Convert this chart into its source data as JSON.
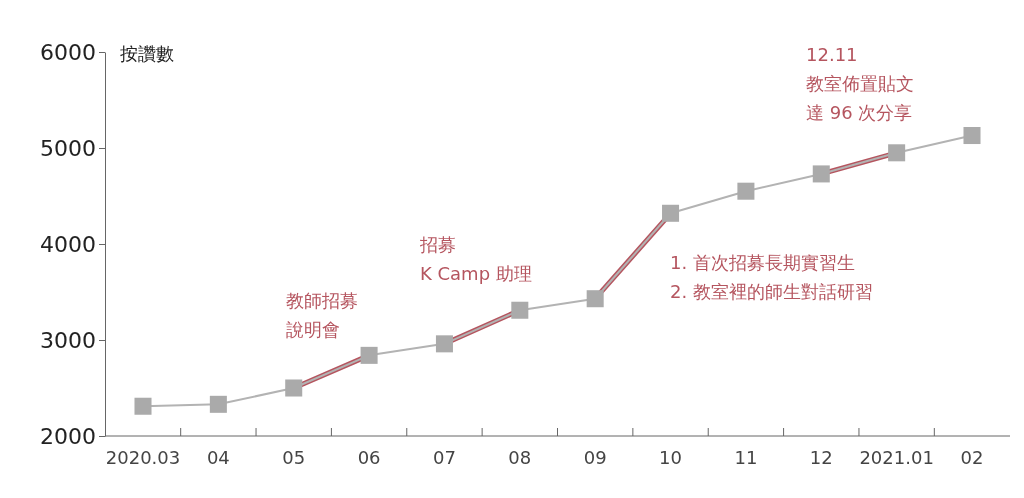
{
  "chart_data": {
    "type": "line",
    "ylabel": "按讚數",
    "categories": [
      "2020.03",
      "04",
      "05",
      "06",
      "07",
      "08",
      "09",
      "10",
      "11",
      "12",
      "2021.01",
      "02"
    ],
    "series": [
      {
        "color": "#b3b3b3",
        "values": [
          2310,
          2330,
          2500,
          2840,
          2960,
          3310,
          3430,
          4320,
          4550,
          4730,
          4950,
          5130
        ],
        "marker": "square"
      },
      {
        "color": "#b5555f",
        "values": [
          null,
          null,
          2500,
          2840,
          null,
          null,
          null,
          null,
          null,
          null,
          null,
          null
        ],
        "marker": "none"
      },
      {
        "color": "#b5555f",
        "values": [
          null,
          null,
          null,
          null,
          2960,
          3310,
          null,
          null,
          null,
          null,
          null,
          null
        ],
        "marker": "none"
      },
      {
        "color": "#b5555f",
        "values": [
          null,
          null,
          null,
          null,
          null,
          null,
          3430,
          4320,
          null,
          null,
          null,
          null
        ],
        "marker": "none"
      },
      {
        "color": "#b5555f",
        "values": [
          null,
          null,
          null,
          null,
          null,
          null,
          null,
          null,
          null,
          4730,
          4950,
          null
        ],
        "marker": "none"
      }
    ],
    "ylim": [
      2000,
      6000
    ],
    "yticks": [
      2000,
      3000,
      4000,
      5000,
      6000
    ],
    "grid": false,
    "annotations": [
      "教師招募說明會",
      "招募K Camp 助理",
      "1. 首次招募長期實習生",
      "2. 教室裡的師生對話研習",
      "12.11",
      "教室佈置貼文達 96 次分享"
    ]
  }
}
